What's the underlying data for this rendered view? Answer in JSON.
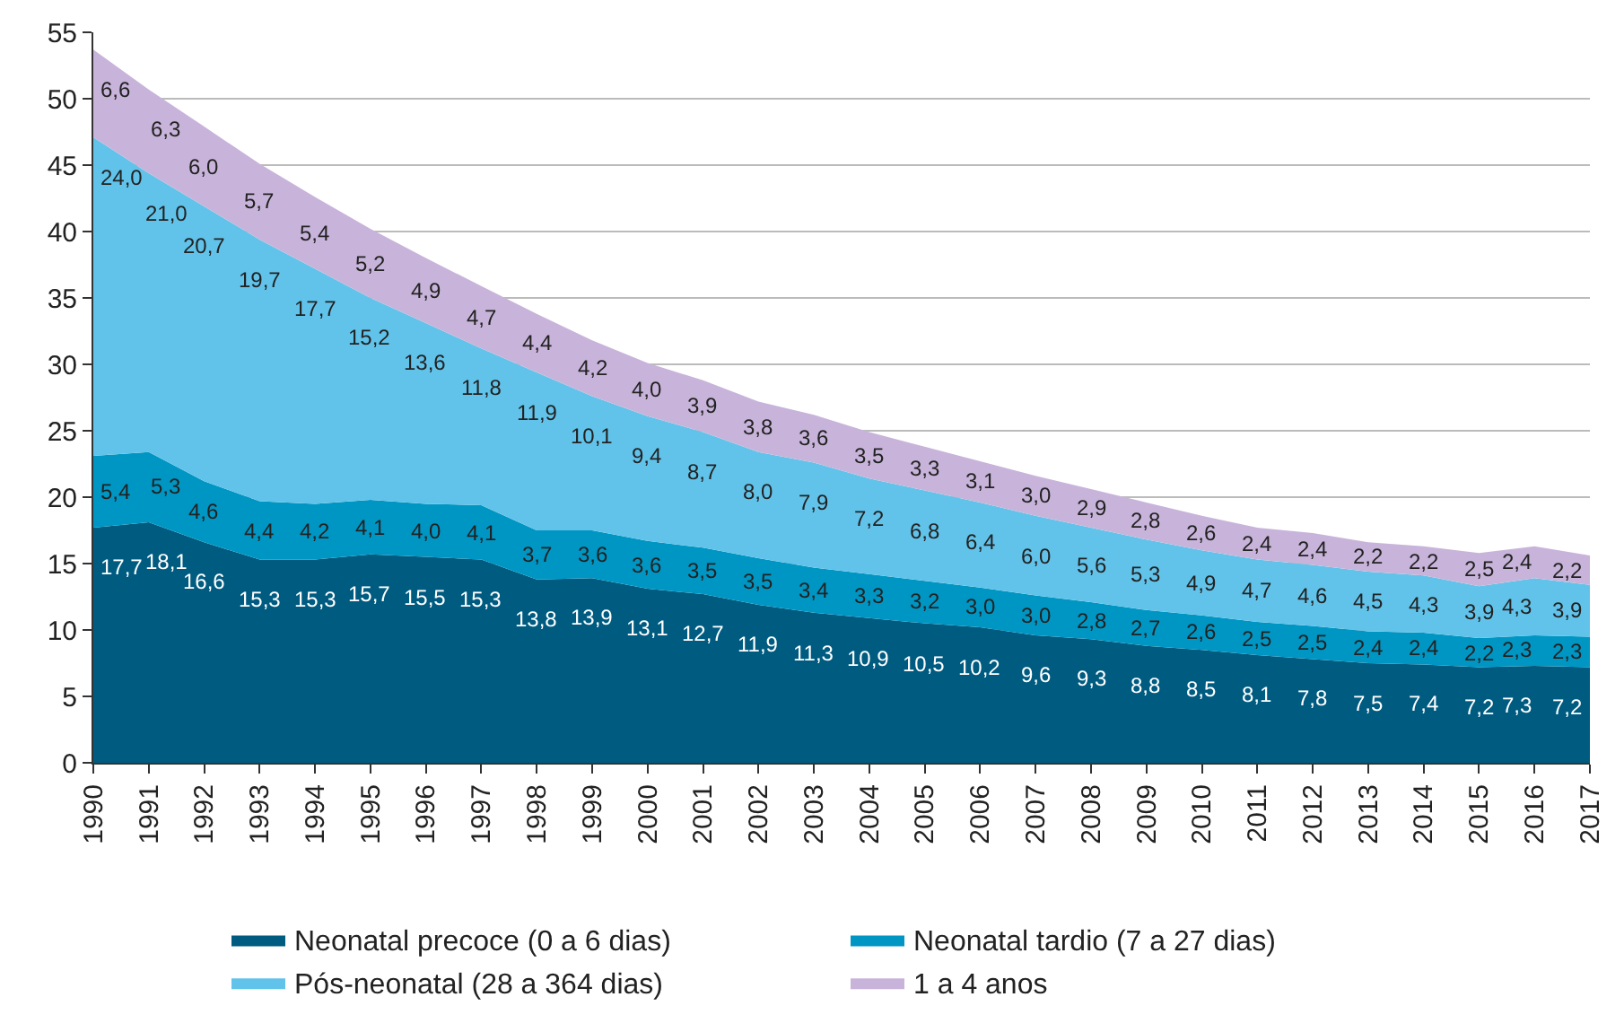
{
  "chart_data": {
    "type": "area",
    "stacked": true,
    "categories": [
      "1990",
      "1991",
      "1992",
      "1993",
      "1994",
      "1995",
      "1996",
      "1997",
      "1998",
      "1999",
      "2000",
      "2001",
      "2002",
      "2003",
      "2004",
      "2005",
      "2006",
      "2007",
      "2008",
      "2009",
      "2010",
      "2011",
      "2012",
      "2013",
      "2014",
      "2015",
      "2016",
      "2017"
    ],
    "series": [
      {
        "name": "Neonatal precoce (0 a 6 dias)",
        "color": "#005b80",
        "values": [
          17.7,
          18.1,
          16.6,
          15.3,
          15.3,
          15.7,
          15.5,
          15.3,
          13.8,
          13.9,
          13.1,
          12.7,
          11.9,
          11.3,
          10.9,
          10.5,
          10.2,
          9.6,
          9.3,
          8.8,
          8.5,
          8.1,
          7.8,
          7.5,
          7.4,
          7.2,
          7.3,
          7.2
        ],
        "value_labels": [
          "17,7",
          "18,1",
          "16,6",
          "15,3",
          "15,3",
          "15,7",
          "15,5",
          "15,3",
          "13,8",
          "13,9",
          "13,1",
          "12,7",
          "11,9",
          "11,3",
          "10,9",
          "10,5",
          "10,2",
          "9,6",
          "9,3",
          "8,8",
          "8,5",
          "8,1",
          "7,8",
          "7,5",
          "7,4",
          "7,2",
          "7,3",
          "7,2"
        ]
      },
      {
        "name": "Neonatal tardio (7 a 27 dias)",
        "color": "#0096c3",
        "values": [
          5.4,
          5.3,
          4.6,
          4.4,
          4.2,
          4.1,
          4.0,
          4.1,
          3.7,
          3.6,
          3.6,
          3.5,
          3.5,
          3.4,
          3.3,
          3.2,
          3.0,
          3.0,
          2.8,
          2.7,
          2.6,
          2.5,
          2.5,
          2.4,
          2.4,
          2.2,
          2.3,
          2.3
        ],
        "value_labels": [
          "5,4",
          "5,3",
          "4,6",
          "4,4",
          "4,2",
          "4,1",
          "4,0",
          "4,1",
          "3,7",
          "3,6",
          "3,6",
          "3,5",
          "3,5",
          "3,4",
          "3,3",
          "3,2",
          "3,0",
          "3,0",
          "2,8",
          "2,7",
          "2,6",
          "2,5",
          "2,5",
          "2,4",
          "2,4",
          "2,2",
          "2,3",
          "2,3"
        ]
      },
      {
        "name": "Pós-neonatal (28 a 364 dias)",
        "color": "#62c3ea",
        "values": [
          24.0,
          21.0,
          20.7,
          19.7,
          17.7,
          15.2,
          13.6,
          11.8,
          11.9,
          10.1,
          9.4,
          8.7,
          8.0,
          7.9,
          7.2,
          6.8,
          6.4,
          6.0,
          5.6,
          5.3,
          4.9,
          4.7,
          4.6,
          4.5,
          4.3,
          3.9,
          4.3,
          3.9
        ],
        "value_labels": [
          "24,0",
          "21,0",
          "20,7",
          "19,7",
          "17,7",
          "15,2",
          "13,6",
          "11,8",
          "11,9",
          "10,1",
          "9,4",
          "8,7",
          "8,0",
          "7,9",
          "7,2",
          "6,8",
          "6,4",
          "6,0",
          "5,6",
          "5,3",
          "4,9",
          "4,7",
          "4,6",
          "4,5",
          "4,3",
          "3,9",
          "4,3",
          "3,9"
        ]
      },
      {
        "name": "1 a 4 anos",
        "color": "#c8b4da",
        "values": [
          6.6,
          6.3,
          6.0,
          5.7,
          5.4,
          5.2,
          4.9,
          4.7,
          4.4,
          4.2,
          4.0,
          3.9,
          3.8,
          3.6,
          3.5,
          3.3,
          3.1,
          3.0,
          2.9,
          2.8,
          2.6,
          2.4,
          2.4,
          2.2,
          2.2,
          2.5,
          2.4,
          2.2
        ],
        "value_labels": [
          "6,6",
          "6,3",
          "6,0",
          "5,7",
          "5,4",
          "5,2",
          "4,9",
          "4,7",
          "4,4",
          "4,2",
          "4,0",
          "3,9",
          "3,8",
          "3,6",
          "3,5",
          "3,3",
          "3,1",
          "3,0",
          "2,9",
          "2,8",
          "2,6",
          "2,4",
          "2,4",
          "2,2",
          "2,2",
          "2,5",
          "2,4",
          "2,2"
        ]
      }
    ],
    "ylim": [
      0,
      55
    ],
    "yticks": [
      0,
      5,
      10,
      15,
      20,
      25,
      30,
      35,
      40,
      45,
      50,
      55
    ],
    "grid": "y",
    "legend": "bottom"
  }
}
